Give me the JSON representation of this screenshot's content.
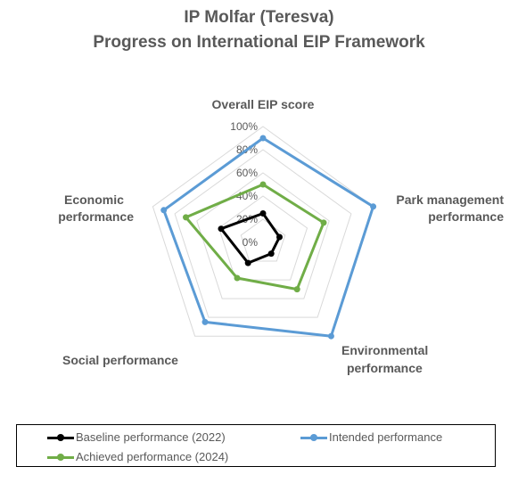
{
  "chart_data": {
    "type": "radar",
    "title": [
      "IP Molfar (Teresva)",
      "Progress on International EIP Framework"
    ],
    "axes": [
      "Overall EIP score",
      "Park management performance",
      "Environmental performance",
      "Social performance",
      "Economic performance"
    ],
    "axis_labels": [
      [
        "Overall EIP score"
      ],
      [
        "Park management",
        "performance"
      ],
      [
        "Environmental",
        "performance"
      ],
      [
        "Social performance"
      ],
      [
        "Economic",
        "performance"
      ]
    ],
    "ticks": [
      "0%",
      "20%",
      "40%",
      "60%",
      "80%",
      "100%"
    ],
    "tick_values": [
      0,
      20,
      40,
      60,
      80,
      100
    ],
    "range": [
      0,
      100
    ],
    "grid": true,
    "legend_position": "bottom",
    "series": [
      {
        "name": "Baseline performance (2022)",
        "color": "#000000",
        "values": [
          25,
          15,
          12,
          22,
          38
        ]
      },
      {
        "name": "Intended performance",
        "color": "#5b9bd5",
        "values": [
          90,
          100,
          100,
          85,
          90
        ]
      },
      {
        "name": "Achieved performance (2024)",
        "color": "#70ad47",
        "values": [
          50,
          55,
          50,
          38,
          70
        ]
      }
    ]
  }
}
